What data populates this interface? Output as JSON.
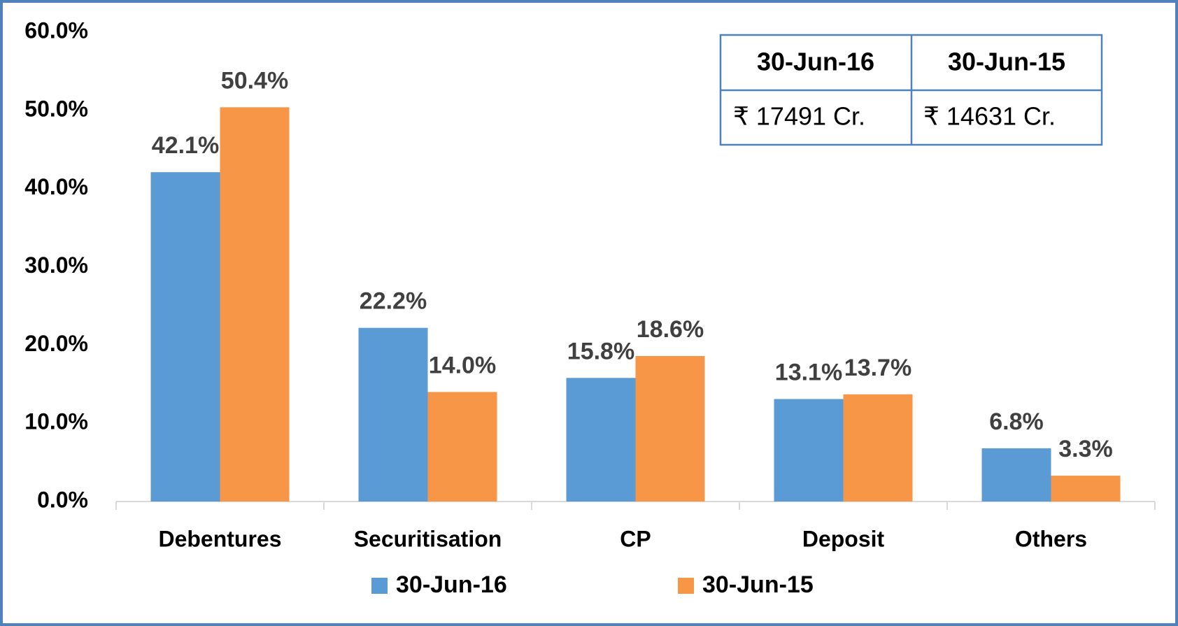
{
  "chart_data": {
    "type": "bar",
    "categories": [
      "Debentures",
      "Securitisation",
      "CP",
      "Deposit",
      "Others"
    ],
    "series": [
      {
        "name": "30-Jun-16",
        "color": "#5b9bd5",
        "values": [
          42.1,
          22.2,
          15.8,
          13.1,
          6.8
        ],
        "value_labels": [
          "42.1%",
          "22.2%",
          "15.8%",
          "13.1%",
          "6.8%"
        ]
      },
      {
        "name": "30-Jun-15",
        "color": "#f79646",
        "values": [
          50.4,
          14.0,
          18.6,
          13.7,
          3.3
        ],
        "value_labels": [
          "50.4%",
          "14.0%",
          "18.6%",
          "13.7%",
          "3.3%"
        ]
      }
    ],
    "ylim": [
      0,
      60
    ],
    "yticks": [
      {
        "value": 0,
        "label": "0.0%"
      },
      {
        "value": 10,
        "label": "10.0%"
      },
      {
        "value": 20,
        "label": "20.0%"
      },
      {
        "value": 30,
        "label": "30.0%"
      },
      {
        "value": 40,
        "label": "40.0%"
      },
      {
        "value": 50,
        "label": "50.0%"
      },
      {
        "value": 60,
        "label": "60.0%"
      }
    ],
    "grid": false,
    "legend": "bottom"
  },
  "table": {
    "header": [
      "30-Jun-16",
      "30-Jun-15"
    ],
    "rows": [
      [
        "₹ 17491 Cr.",
        "₹ 14631 Cr."
      ]
    ]
  }
}
